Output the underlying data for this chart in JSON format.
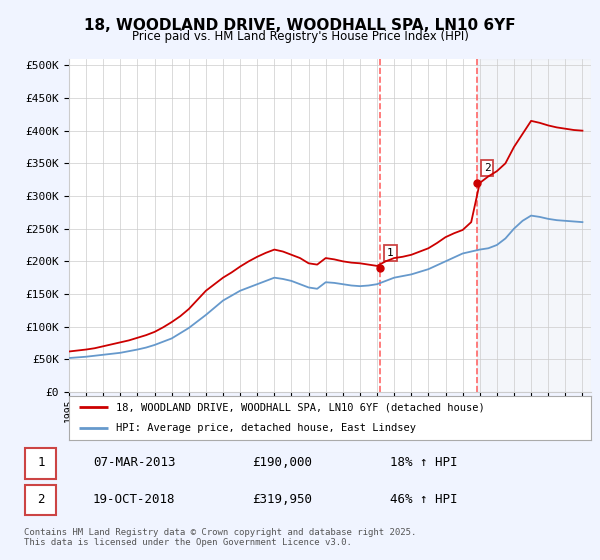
{
  "title1": "18, WOODLAND DRIVE, WOODHALL SPA, LN10 6YF",
  "title2": "Price paid vs. HM Land Registry's House Price Index (HPI)",
  "ytick_values": [
    0,
    50000,
    100000,
    150000,
    200000,
    250000,
    300000,
    350000,
    400000,
    450000,
    500000
  ],
  "xlim_start": 1995,
  "xlim_end": 2025.5,
  "ylim": [
    0,
    510000
  ],
  "sale1_date": "07-MAR-2013",
  "sale1_price": 190000,
  "sale1_label": "1",
  "sale1_hpi_pct": "18%",
  "sale2_date": "19-OCT-2018",
  "sale2_price": 319950,
  "sale2_label": "2",
  "sale2_hpi_pct": "46%",
  "legend_line1": "18, WOODLAND DRIVE, WOODHALL SPA, LN10 6YF (detached house)",
  "legend_line2": "HPI: Average price, detached house, East Lindsey",
  "footnote": "Contains HM Land Registry data © Crown copyright and database right 2025.\nThis data is licensed under the Open Government Licence v3.0.",
  "line_color_red": "#cc0000",
  "line_color_blue": "#6699cc",
  "vline_color": "#ff6666",
  "background_color": "#f0f4ff",
  "plot_bg": "#ffffff",
  "grid_color": "#cccccc",
  "years_hpi": [
    1995,
    1995.5,
    1996,
    1996.5,
    1997,
    1997.5,
    1998,
    1998.5,
    1999,
    1999.5,
    2000,
    2000.5,
    2001,
    2001.5,
    2002,
    2002.5,
    2003,
    2003.5,
    2004,
    2004.5,
    2005,
    2005.5,
    2006,
    2006.5,
    2007,
    2007.5,
    2008,
    2008.5,
    2009,
    2009.5,
    2010,
    2010.5,
    2011,
    2011.5,
    2012,
    2012.5,
    2013,
    2013.5,
    2014,
    2014.5,
    2015,
    2015.5,
    2016,
    2016.5,
    2017,
    2017.5,
    2018,
    2018.5,
    2019,
    2019.5,
    2020,
    2020.5,
    2021,
    2021.5,
    2022,
    2022.5,
    2023,
    2023.5,
    2024,
    2024.5,
    2025
  ],
  "hpi_values": [
    52000,
    53000,
    54000,
    55500,
    57000,
    58500,
    60000,
    62500,
    65000,
    68000,
    72000,
    77000,
    82000,
    90000,
    98000,
    108000,
    118000,
    129000,
    140000,
    147500,
    155000,
    160000,
    165000,
    170000,
    175000,
    173000,
    170000,
    165000,
    160000,
    158000,
    168000,
    167000,
    165000,
    163000,
    162000,
    163000,
    165000,
    170000,
    175000,
    177500,
    180000,
    184000,
    188000,
    194000,
    200000,
    206000,
    212000,
    215000,
    218000,
    220000,
    225000,
    235000,
    250000,
    262000,
    270000,
    268000,
    265000,
    263000,
    262000,
    261000,
    260000
  ],
  "red_values": [
    62000,
    63500,
    65000,
    67000,
    70000,
    73000,
    76000,
    79000,
    83000,
    87000,
    92000,
    99000,
    107000,
    116000,
    127000,
    141000,
    155000,
    165000,
    175000,
    183000,
    192000,
    200000,
    207000,
    213000,
    218000,
    215000,
    210000,
    205000,
    197000,
    195000,
    205000,
    203000,
    200000,
    198000,
    197000,
    195000,
    193000,
    200000,
    205000,
    207000,
    210000,
    215000,
    220000,
    228000,
    237000,
    243000,
    248000,
    260000,
    320000,
    330000,
    338000,
    350000,
    375000,
    395000,
    415000,
    412000,
    408000,
    405000,
    403000,
    401000,
    400000
  ]
}
